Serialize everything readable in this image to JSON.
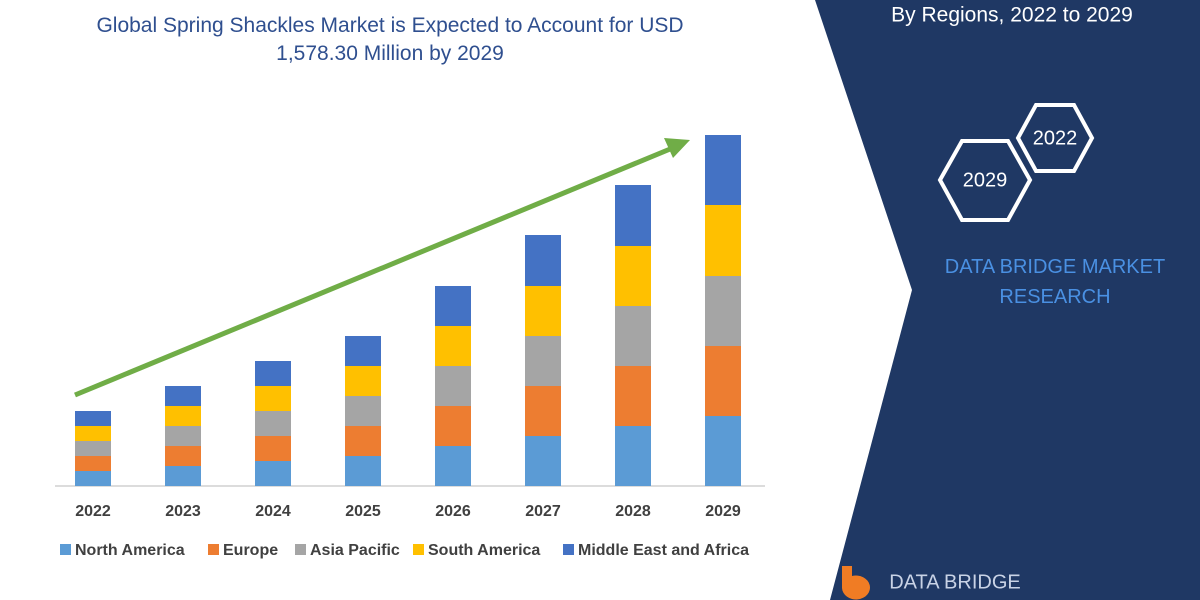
{
  "chart_data": {
    "type": "stacked-bar",
    "title": "Global Spring Shackles Market is Expected to Account for USD 1,578.30 Million by 2029",
    "categories": [
      "2022",
      "2023",
      "2024",
      "2025",
      "2026",
      "2027",
      "2028",
      "2029"
    ],
    "series": [
      {
        "name": "North America",
        "color": "#5b9bd5",
        "values": [
          15,
          20,
          25,
          30,
          40,
          50,
          60,
          70
        ]
      },
      {
        "name": "Europe",
        "color": "#ed7d31",
        "values": [
          15,
          20,
          25,
          30,
          40,
          50,
          60,
          70
        ]
      },
      {
        "name": "Asia Pacific",
        "color": "#a5a5a5",
        "values": [
          15,
          20,
          25,
          30,
          40,
          50,
          60,
          70
        ]
      },
      {
        "name": "South America",
        "color": "#ffc000",
        "values": [
          15,
          20,
          25,
          30,
          40,
          50,
          60,
          71
        ]
      },
      {
        "name": "Middle East and Africa",
        "color": "#4472c4",
        "values": [
          15,
          20,
          25,
          30,
          40,
          51,
          61,
          70
        ]
      }
    ],
    "ylim": [
      0,
      360
    ],
    "grid": false,
    "legend": "bottom"
  },
  "side_panel": {
    "heading": "By Regions, 2022 to 2029",
    "badges": [
      "2022",
      "2029"
    ],
    "brand": "DATA BRIDGE MARKET RESEARCH",
    "logo": "DATA BRIDGE"
  }
}
